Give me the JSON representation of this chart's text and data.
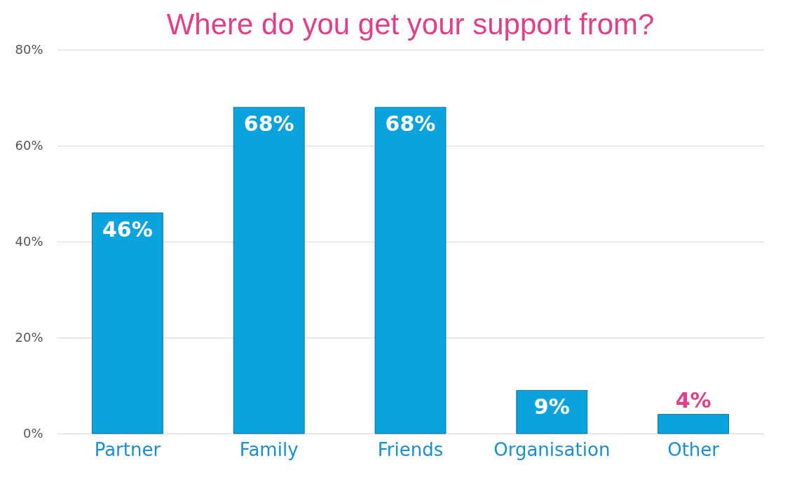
{
  "chart_data": {
    "type": "bar",
    "title": "Where do you get your support from?",
    "categories": [
      "Partner",
      "Family",
      "Friends",
      "Organisation",
      "Other"
    ],
    "values": [
      46,
      68,
      68,
      9,
      4
    ],
    "value_labels": [
      "46%",
      "68%",
      "68%",
      "9%",
      "4%"
    ],
    "color": "#0ba3dd",
    "ylim": [
      0,
      80
    ],
    "yticks": [
      {
        "value": 0,
        "label": "0%"
      },
      {
        "value": 20,
        "label": "20%"
      },
      {
        "value": 40,
        "label": "40%"
      },
      {
        "value": 60,
        "label": "60%"
      },
      {
        "value": 80,
        "label": "80%"
      }
    ],
    "grid": "y"
  }
}
